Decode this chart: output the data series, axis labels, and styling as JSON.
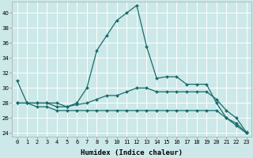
{
  "xlabel": "Humidex (Indice chaleur)",
  "ylabel": "",
  "bg_color": "#cce8e8",
  "line_color": "#1a6b6b",
  "grid_color": "#b8d8d8",
  "xlim": [
    -0.5,
    23.5
  ],
  "ylim": [
    23.5,
    41.5
  ],
  "yticks": [
    24,
    26,
    28,
    30,
    32,
    34,
    36,
    38,
    40
  ],
  "xticks": [
    0,
    1,
    2,
    3,
    4,
    5,
    6,
    7,
    8,
    9,
    10,
    11,
    12,
    13,
    14,
    15,
    16,
    17,
    18,
    19,
    20,
    21,
    22,
    23
  ],
  "lines": [
    [
      31,
      28,
      28,
      28,
      28,
      27.5,
      28,
      30,
      35,
      37,
      39,
      40,
      41,
      35.5,
      31.3,
      31.5,
      31.5,
      30.5,
      30.5,
      30.5,
      28,
      26,
      25.3,
      24
    ],
    [
      28,
      28,
      28,
      28,
      27.5,
      27.5,
      27.8,
      28,
      28.5,
      29,
      29,
      29.5,
      30,
      30,
      29.5,
      29.5,
      29.5,
      29.5,
      29.5,
      29.5,
      28.5,
      27,
      26,
      24.1
    ],
    [
      28,
      28,
      27.5,
      27.5,
      27,
      27,
      27,
      27,
      27,
      27,
      27,
      27,
      27,
      27,
      27,
      27,
      27,
      27,
      27,
      27,
      27,
      26,
      25,
      24
    ]
  ],
  "marker": "D",
  "markersize": 2.0,
  "linewidth": 0.9,
  "tick_fontsize": 5.0,
  "xlabel_fontsize": 6.5
}
